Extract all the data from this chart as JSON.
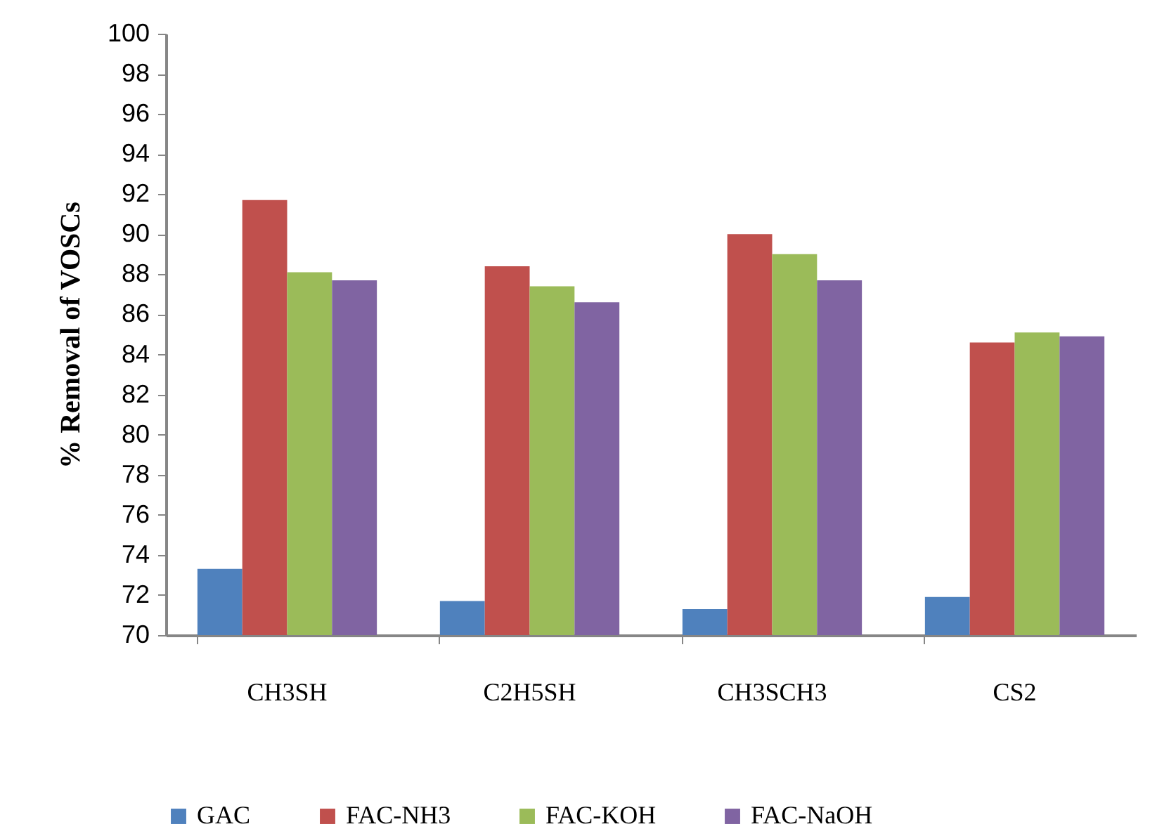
{
  "chart_data": {
    "type": "bar",
    "ylabel": "% Removal of VOSCs",
    "categories": [
      "CH3SH",
      "C2H5SH",
      "CH3SCH3",
      "CS2"
    ],
    "series": [
      {
        "name": "GAC",
        "color": "#4f81bd",
        "values": [
          73.3,
          71.7,
          71.3,
          71.9
        ]
      },
      {
        "name": "FAC-NH3",
        "color": "#c0504d",
        "values": [
          91.7,
          88.4,
          90.0,
          84.6
        ]
      },
      {
        "name": "FAC-KOH",
        "color": "#9bbb59",
        "values": [
          88.1,
          87.4,
          89.0,
          85.1
        ]
      },
      {
        "name": "FAC-NaOH",
        "color": "#8064a2",
        "values": [
          87.7,
          86.6,
          87.7,
          84.9
        ]
      }
    ],
    "ylim": [
      70,
      100
    ],
    "yticks": [
      70,
      72,
      74,
      76,
      78,
      80,
      82,
      84,
      86,
      88,
      90,
      92,
      94,
      96,
      98,
      100
    ],
    "grid": false,
    "legend": "bottom"
  }
}
